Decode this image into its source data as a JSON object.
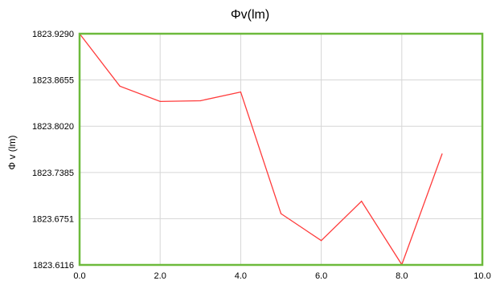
{
  "chart_data": {
    "type": "line",
    "title": "Φv(lm)",
    "xlabel": "",
    "ylabel": "Φ v (lm)",
    "xlim": [
      0.0,
      10.0
    ],
    "ylim": [
      1823.6116,
      1823.929
    ],
    "x_ticks": [
      "0.0",
      "2.0",
      "4.0",
      "6.0",
      "8.0",
      "10.0"
    ],
    "y_ticks": [
      "1823.6116",
      "1823.6751",
      "1823.7385",
      "1823.8020",
      "1823.8655",
      "1823.9290"
    ],
    "grid": true,
    "legend": "none",
    "series": [
      {
        "color": "#ff3b3b",
        "x": [
          0,
          1,
          2,
          3,
          4,
          5,
          6,
          7,
          8,
          9
        ],
        "y": [
          1823.929,
          1823.857,
          1823.836,
          1823.837,
          1823.849,
          1823.682,
          1823.645,
          1823.699,
          1823.612,
          1823.764
        ]
      }
    ],
    "frame_color": "#6dba3c",
    "grid_color": "#d6d6d6"
  }
}
